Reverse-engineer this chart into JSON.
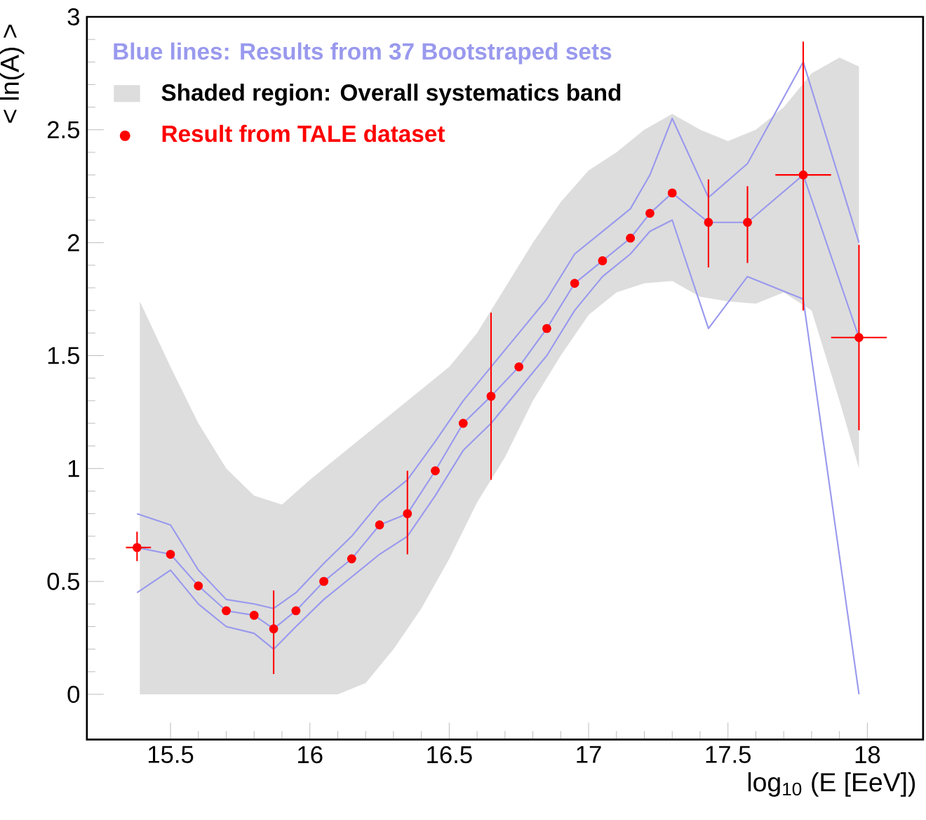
{
  "chart_data": {
    "type": "line",
    "xlabel": "log$_{10}$ (E [EeV])",
    "ylabel": "< ln(A) >",
    "xlim": [
      15.2,
      18.2
    ],
    "ylim": [
      -0.2,
      3
    ],
    "xticks": [
      15.5,
      16,
      16.5,
      17,
      17.5,
      18
    ],
    "yticks": [
      0,
      0.5,
      1,
      1.5,
      2,
      2.5,
      3
    ],
    "legend": "top left",
    "grid": false,
    "series": [
      {
        "name": "Shaded region: Overall systematics band",
        "type": "area",
        "color": "#dddddd",
        "x": [
          15.39,
          15.5,
          15.6,
          15.7,
          15.8,
          15.9,
          16.0,
          16.1,
          16.2,
          16.3,
          16.4,
          16.5,
          16.6,
          16.7,
          16.8,
          16.9,
          17.0,
          17.1,
          17.2,
          17.3,
          17.4,
          17.5,
          17.6,
          17.7,
          17.8,
          17.9,
          17.97
        ],
        "values": [
          null,
          null,
          null,
          null,
          null,
          null,
          null,
          null,
          null,
          null,
          null,
          null,
          null,
          null,
          null,
          null,
          null,
          null,
          null,
          null,
          null,
          null,
          null,
          null,
          null,
          null,
          null
        ],
        "lower": [
          0,
          0,
          0,
          0,
          0,
          0,
          0,
          0,
          0.05,
          0.2,
          0.38,
          0.6,
          0.85,
          1.05,
          1.3,
          1.5,
          1.68,
          1.78,
          1.82,
          1.83,
          1.76,
          1.74,
          1.73,
          1.78,
          1.7,
          1.3,
          1.0
        ],
        "upper": [
          1.74,
          1.45,
          1.2,
          1.0,
          0.88,
          0.84,
          0.95,
          1.05,
          1.15,
          1.25,
          1.35,
          1.45,
          1.6,
          1.8,
          2.0,
          2.18,
          2.32,
          2.4,
          2.5,
          2.57,
          2.5,
          2.45,
          2.5,
          2.6,
          2.75,
          2.82,
          2.78
        ]
      },
      {
        "name": "Blue lines: Results from 37 Bootstraped sets",
        "color": "#9999ee",
        "x": [
          15.38,
          15.5,
          15.6,
          15.7,
          15.8,
          15.87,
          15.95,
          16.05,
          16.15,
          16.25,
          16.35,
          16.45,
          16.55,
          16.65,
          16.75,
          16.85,
          16.95,
          17.05,
          17.15,
          17.22,
          17.3,
          17.43,
          17.57,
          17.77,
          17.97
        ],
        "values": [
          0.65,
          0.62,
          0.48,
          0.37,
          0.35,
          0.29,
          0.37,
          0.5,
          0.6,
          0.75,
          0.8,
          0.99,
          1.2,
          1.32,
          1.45,
          1.62,
          1.82,
          1.92,
          2.02,
          2.13,
          2.22,
          2.09,
          2.09,
          2.3,
          1.58
        ]
      },
      {
        "color": "#9999ee",
        "x": [
          15.38,
          15.5,
          15.6,
          15.7,
          15.8,
          15.87,
          15.95,
          16.05,
          16.15,
          16.25,
          16.35,
          16.45,
          16.55,
          16.65,
          16.75,
          16.85,
          16.95,
          17.05,
          17.15,
          17.22,
          17.3,
          17.43,
          17.57,
          17.77,
          17.97
        ],
        "values": [
          0.8,
          0.75,
          0.55,
          0.42,
          0.4,
          0.38,
          0.45,
          0.58,
          0.7,
          0.85,
          0.95,
          1.12,
          1.3,
          1.45,
          1.6,
          1.75,
          1.95,
          2.05,
          2.15,
          2.3,
          2.55,
          2.2,
          2.35,
          2.8,
          2.0
        ]
      },
      {
        "color": "#9999ee",
        "x": [
          15.38,
          15.5,
          15.6,
          15.7,
          15.8,
          15.87,
          15.95,
          16.05,
          16.15,
          16.25,
          16.35,
          16.45,
          16.55,
          16.65,
          16.75,
          16.85,
          16.95,
          17.05,
          17.15,
          17.22,
          17.3,
          17.43,
          17.57,
          17.77,
          17.97
        ],
        "values": [
          0.45,
          0.55,
          0.4,
          0.3,
          0.27,
          0.2,
          0.3,
          0.42,
          0.52,
          0.62,
          0.7,
          0.88,
          1.08,
          1.2,
          1.35,
          1.5,
          1.7,
          1.85,
          1.95,
          2.05,
          2.1,
          1.62,
          1.85,
          1.75,
          0.0
        ]
      },
      {
        "name": "Result from TALE dataset",
        "type": "scatter",
        "marker": "circle",
        "color": "#ff0000",
        "x": [
          15.38,
          15.5,
          15.6,
          15.7,
          15.8,
          15.87,
          15.95,
          16.05,
          16.15,
          16.25,
          16.35,
          16.45,
          16.55,
          16.65,
          16.75,
          16.85,
          16.95,
          17.05,
          17.15,
          17.22,
          17.3,
          17.43,
          17.57,
          17.77,
          17.97
        ],
        "values": [
          0.65,
          0.62,
          0.48,
          0.37,
          0.35,
          0.29,
          0.37,
          0.5,
          0.6,
          0.75,
          0.8,
          0.99,
          1.2,
          1.32,
          1.45,
          1.62,
          1.82,
          1.92,
          2.02,
          2.13,
          2.22,
          2.09,
          2.09,
          2.3,
          1.58
        ],
        "errors": [
          [
            0.59,
            0.72
          ],
          null,
          null,
          null,
          null,
          [
            0.09,
            0.46
          ],
          null,
          null,
          null,
          null,
          [
            0.62,
            0.99
          ],
          null,
          null,
          [
            0.95,
            1.69
          ],
          null,
          null,
          null,
          null,
          null,
          null,
          null,
          [
            1.89,
            2.28
          ],
          [
            1.91,
            2.25
          ],
          [
            1.7,
            2.89
          ],
          [
            1.17,
            1.99
          ]
        ],
        "xerrors": [
          [
            15.34,
            15.43
          ],
          null,
          null,
          null,
          null,
          null,
          null,
          null,
          null,
          null,
          null,
          null,
          null,
          null,
          null,
          null,
          null,
          null,
          null,
          null,
          null,
          null,
          null,
          [
            17.67,
            17.87
          ],
          [
            17.87,
            18.07
          ]
        ]
      }
    ]
  }
}
